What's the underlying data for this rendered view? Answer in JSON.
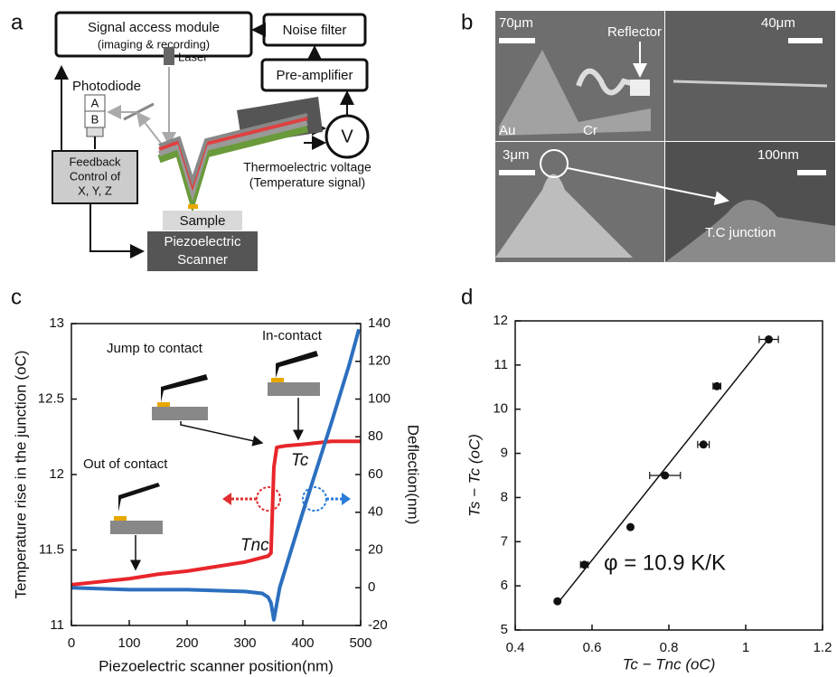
{
  "panel_labels": [
    "a",
    "b",
    "c",
    "d"
  ],
  "diagram": {
    "signal_module": [
      "Signal access module",
      "(imaging & recording)"
    ],
    "noise_filter": "Noise filter",
    "pre_amplifier": "Pre-amplifier",
    "voltmeter": "V",
    "photodiode": "Photodiode",
    "diode_cells": [
      "A",
      "B"
    ],
    "laser": "Laser",
    "feedback": [
      "Feedback",
      "Control of",
      "X, Y, Z"
    ],
    "sample": "Sample",
    "scanner": [
      "Piezoelectric",
      "Scanner"
    ],
    "thermo_voltage": [
      "Thermoelectric voltage",
      "(Temperature signal)"
    ]
  },
  "sem": {
    "scales": [
      "70μm",
      "40μm",
      "3μm",
      "100nm"
    ],
    "reflector": "Reflector",
    "au": "Au",
    "cr": "Cr",
    "junction": "T.C junction"
  },
  "chart_data": [
    {
      "type": "line",
      "xlabel": "Piezoelectric scanner position(nm)",
      "ylabel": "Temperature rise in the junction (oC)",
      "y2label": "Deflection(nm)",
      "xlim": [
        0,
        500
      ],
      "xticks": [
        0,
        100,
        200,
        300,
        400,
        500
      ],
      "ylim": [
        11,
        13
      ],
      "yticks": [
        11,
        11.5,
        12,
        12.5,
        13
      ],
      "y2lim": [
        -20,
        140
      ],
      "y2ticks": [
        -20,
        0,
        20,
        40,
        60,
        80,
        100,
        120,
        140
      ],
      "annotations": [
        "Out of contact",
        "Jump to contact",
        "In-contact",
        "Tc",
        "Tnc"
      ],
      "series": [
        {
          "color": "#e8262b",
          "x": [
            0,
            50,
            100,
            150,
            200,
            250,
            300,
            340,
            345,
            350,
            355,
            370,
            400,
            450,
            500
          ],
          "values": [
            11.27,
            11.29,
            11.31,
            11.34,
            11.36,
            11.39,
            11.42,
            11.46,
            11.48,
            12.05,
            12.18,
            12.19,
            12.2,
            12.22,
            12.22
          ]
        },
        {
          "color": "#2c6fbf",
          "axis": "y2",
          "x": [
            0,
            100,
            200,
            300,
            330,
            340,
            345,
            350,
            360,
            400,
            450,
            480,
            497
          ],
          "values": [
            0,
            -1,
            -1,
            -2,
            -3,
            -5,
            -8,
            -17,
            0,
            40,
            88,
            118,
            137
          ]
        }
      ]
    },
    {
      "type": "scatter",
      "xlabel": "Tc − Tnc (oC)",
      "ylabel": "Ts − Tc (oC)",
      "color": "#111",
      "xlim": [
        0.4,
        1.2
      ],
      "xticks": [
        0.4,
        0.6,
        0.8,
        1,
        1.2
      ],
      "ylim": [
        5,
        12
      ],
      "yticks": [
        5,
        6,
        7,
        8,
        9,
        10,
        11,
        12
      ],
      "x": [
        0.51,
        0.58,
        0.7,
        0.79,
        0.89,
        0.925,
        1.06
      ],
      "values": [
        5.65,
        6.48,
        7.33,
        8.5,
        9.2,
        10.52,
        11.58
      ],
      "x_err": [
        0,
        0.01,
        0,
        0.04,
        0.015,
        0.01,
        0.025
      ],
      "fit": {
        "x": [
          0.51,
          1.06
        ],
        "values": [
          5.6,
          11.6
        ]
      },
      "annotation": "φ = 10.9 K/K"
    }
  ]
}
